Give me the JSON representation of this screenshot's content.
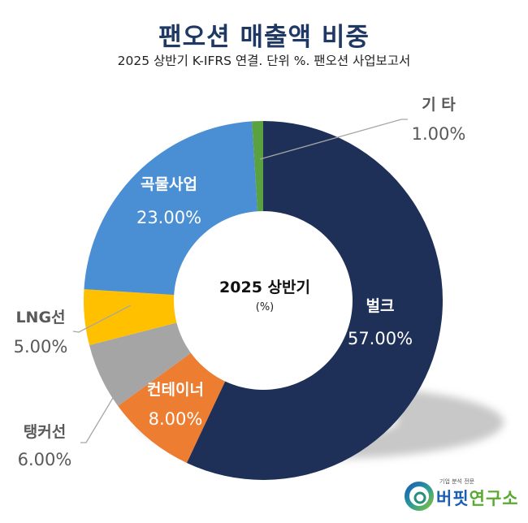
{
  "header": {
    "title": "팬오션 매출액 비중",
    "subtitle": "2025 상반기 K-IFRS 연결. 단위 %. 팬오션 사업보고서"
  },
  "chart_data": {
    "type": "pie",
    "variant": "donut",
    "title": "팬오션 매출액 비중",
    "subtitle": "2025 상반기 K-IFRS 연결. 단위 %. 팬오션 사업보고서",
    "center_label": "2025 상반기",
    "center_sublabel": "(%)",
    "unit": "%",
    "start_angle": "12 o'clock",
    "direction": "clockwise",
    "slices": [
      {
        "name": "벌크",
        "value": 57.0,
        "label": "57.00%",
        "color": "#1f3058",
        "label_position": "inside"
      },
      {
        "name": "컨테이너",
        "value": 8.0,
        "label": "8.00%",
        "color": "#ed7d31",
        "label_position": "inside"
      },
      {
        "name": "탱커선",
        "value": 6.0,
        "label": "6.00%",
        "color": "#a5a5a5",
        "label_position": "outside-left"
      },
      {
        "name": "LNG선",
        "value": 5.0,
        "label": "5.00%",
        "color": "#ffc000",
        "label_position": "outside-left"
      },
      {
        "name": "곡물사업",
        "value": 23.0,
        "label": "23.00%",
        "color": "#4a8fd4",
        "label_position": "inside"
      },
      {
        "name": "기 타",
        "value": 1.0,
        "label": "1.00%",
        "color": "#5aa140",
        "label_position": "outside-right"
      }
    ]
  },
  "branding": {
    "tagline": "기업 분석 전문",
    "name_part1": "버핏",
    "name_part2": "연구소"
  }
}
